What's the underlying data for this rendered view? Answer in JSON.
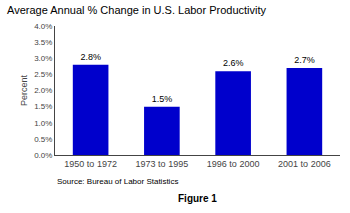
{
  "chart_data": {
    "type": "bar",
    "title": "Average Annual % Change in U.S. Labor Productivity",
    "ylabel": "Percent",
    "categories": [
      "1950 to 1972",
      "1973 to 1995",
      "1996 to 2000",
      "2001 to 2006"
    ],
    "values": [
      2.8,
      1.5,
      2.6,
      2.7
    ],
    "value_labels": [
      "2.8%",
      "1.5%",
      "2.6%",
      "2.7%"
    ],
    "data_labels": true,
    "color": "#0000CC",
    "ylim": [
      0.0,
      4.0
    ],
    "yticks": [
      {
        "value": 0.0,
        "label": "0.0%"
      },
      {
        "value": 0.5,
        "label": "0.5%"
      },
      {
        "value": 1.0,
        "label": "1.0%"
      },
      {
        "value": 1.5,
        "label": "1.5%"
      },
      {
        "value": 2.0,
        "label": "2.0%"
      },
      {
        "value": 2.5,
        "label": "2.5%"
      },
      {
        "value": 3.0,
        "label": "3.0%"
      },
      {
        "value": 3.5,
        "label": "3.5%"
      },
      {
        "value": 4.0,
        "label": "4.0%"
      }
    ],
    "grid": false,
    "annotations": [
      "Source: Bureau of Labor Statistics",
      "Figure 1"
    ]
  }
}
